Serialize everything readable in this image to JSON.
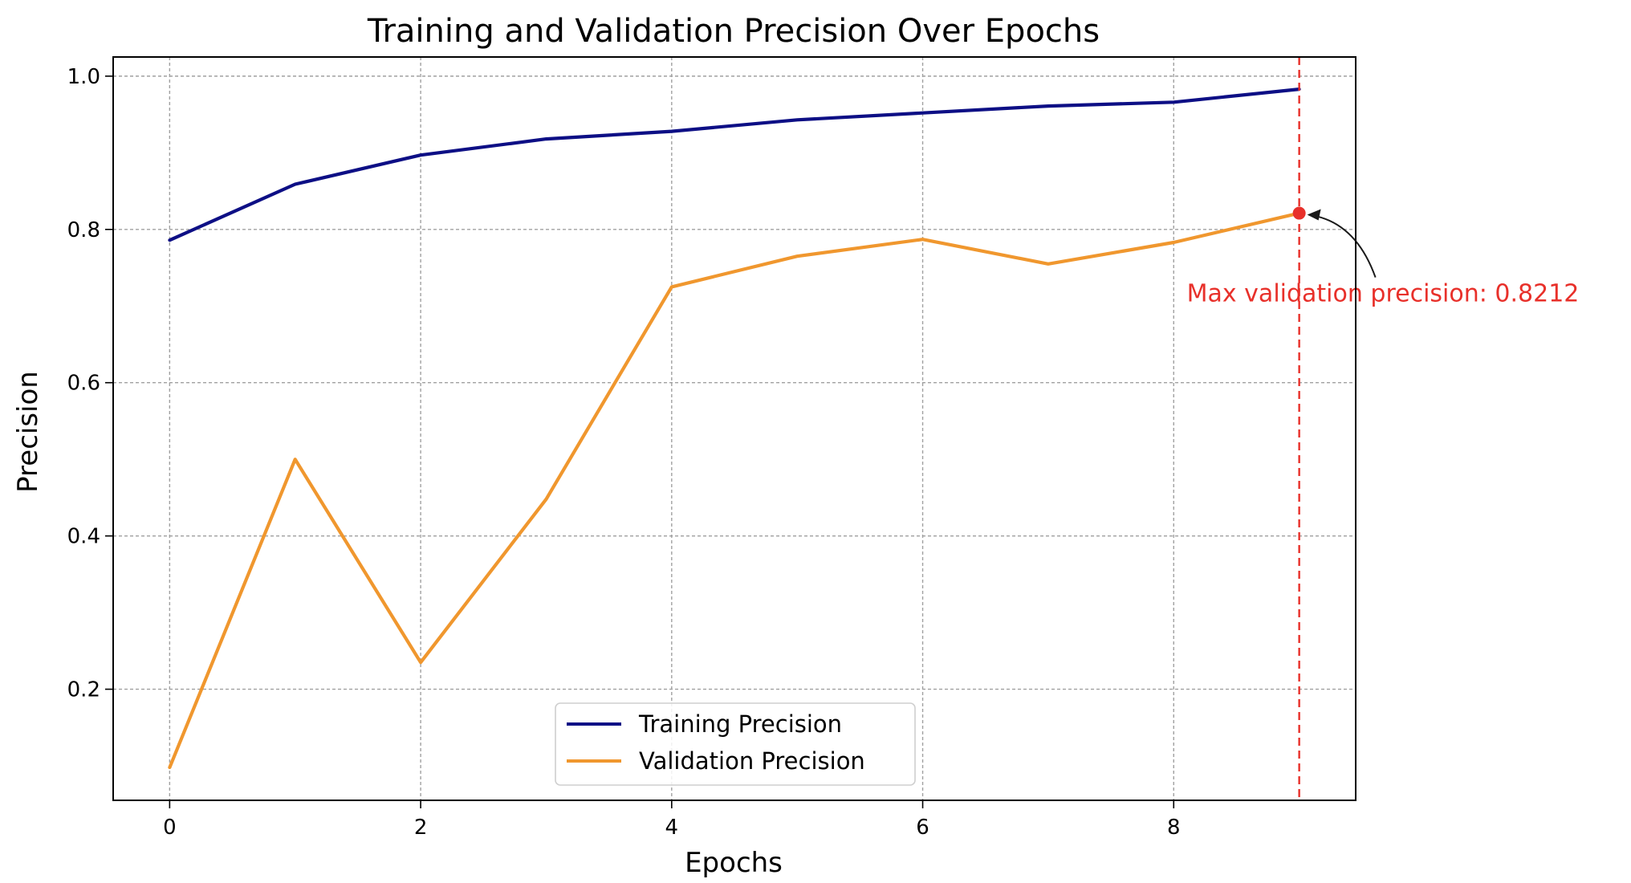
{
  "chart_data": {
    "type": "line",
    "title": "Training and Validation Precision Over Epochs",
    "xlabel": "Epochs",
    "ylabel": "Precision",
    "x": [
      0,
      1,
      2,
      3,
      4,
      5,
      6,
      7,
      8,
      9
    ],
    "xlim": [
      -0.45,
      9.45
    ],
    "ylim": [
      0.055,
      1.025
    ],
    "xticks": [
      0,
      2,
      4,
      6,
      8
    ],
    "yticks": [
      0.2,
      0.4,
      0.6,
      0.8,
      1.0
    ],
    "xtick_labels": [
      "0",
      "2",
      "4",
      "6",
      "8"
    ],
    "ytick_labels": [
      "0.2",
      "0.4",
      "0.6",
      "0.8",
      "1.0"
    ],
    "grid": true,
    "legend_position": "lower-center",
    "series": [
      {
        "name": "Training Precision",
        "color": "#0d0f85",
        "values": [
          0.786,
          0.859,
          0.897,
          0.918,
          0.928,
          0.943,
          0.952,
          0.961,
          0.966,
          0.983
        ]
      },
      {
        "name": "Validation Precision",
        "color": "#f0972e",
        "values": [
          0.098,
          0.5,
          0.235,
          0.448,
          0.725,
          0.765,
          0.787,
          0.755,
          0.783,
          0.8212
        ]
      }
    ],
    "annotation": {
      "text": "Max validation precision: 0.8212",
      "x": 9,
      "y": 0.8212,
      "color": "#e8302a"
    },
    "vline": {
      "x": 9,
      "color": "#e8302a"
    }
  }
}
